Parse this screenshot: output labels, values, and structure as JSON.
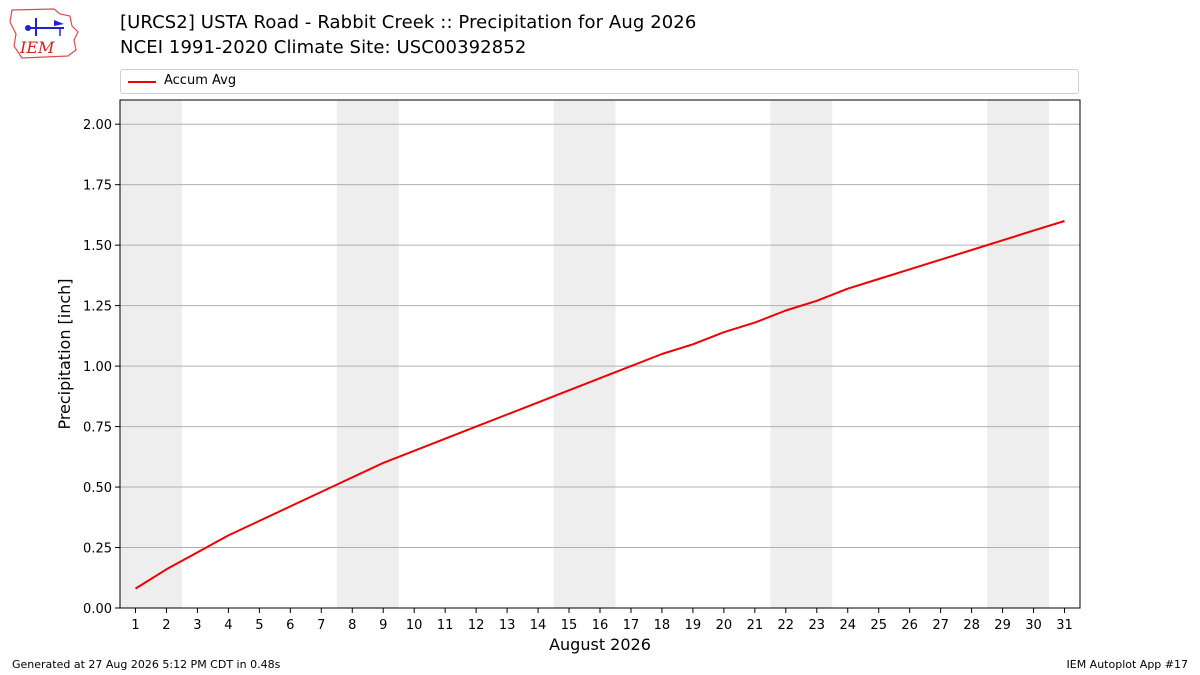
{
  "header": {
    "title_line1": "[URCS2] USTA Road - Rabbit Creek :: Precipitation for Aug 2026",
    "title_line2": "NCEI 1991-2020 Climate Site: USC00392852",
    "logo_text": "IEM"
  },
  "legend": {
    "entries": [
      "Accum Avg"
    ]
  },
  "footer": {
    "left": "Generated at 27 Aug 2026 5:12 PM CDT in 0.48s",
    "right": "IEM Autoplot App #17"
  },
  "colors": {
    "series": "#ee0000",
    "weekend_band": "#eeeeee",
    "grid": "#b0b0b0"
  },
  "chart_data": {
    "type": "line",
    "title": "[URCS2] USTA Road - Rabbit Creek :: Precipitation for Aug 2026",
    "subtitle": "NCEI 1991-2020 Climate Site: USC00392852",
    "xlabel": "August 2026",
    "ylabel": "Precipitation [inch]",
    "x": [
      1,
      2,
      3,
      4,
      5,
      6,
      7,
      8,
      9,
      10,
      11,
      12,
      13,
      14,
      15,
      16,
      17,
      18,
      19,
      20,
      21,
      22,
      23,
      24,
      25,
      26,
      27,
      28,
      29,
      30,
      31
    ],
    "xlim": [
      0.5,
      31.5
    ],
    "ylim": [
      0,
      2.1
    ],
    "yticks": [
      0,
      0.25,
      0.5,
      0.75,
      1.0,
      1.25,
      1.5,
      1.75,
      2.0
    ],
    "ytick_labels": [
      "0.00",
      "0.25",
      "0.50",
      "0.75",
      "1.00",
      "1.25",
      "1.50",
      "1.75",
      "2.00"
    ],
    "grid": "horizontal",
    "legend_position": "top",
    "shaded_bands": [
      [
        1,
        2
      ],
      [
        8,
        9
      ],
      [
        15,
        16
      ],
      [
        22,
        23
      ],
      [
        29,
        30
      ]
    ],
    "series": [
      {
        "name": "Accum Avg",
        "color": "#ee0000",
        "values": [
          0.08,
          0.16,
          0.23,
          0.3,
          0.36,
          0.42,
          0.48,
          0.54,
          0.6,
          0.65,
          0.7,
          0.75,
          0.8,
          0.85,
          0.9,
          0.95,
          1.0,
          1.05,
          1.09,
          1.14,
          1.18,
          1.23,
          1.27,
          1.32,
          1.36,
          1.4,
          1.44,
          1.48,
          1.52,
          1.56,
          1.6
        ]
      }
    ]
  }
}
